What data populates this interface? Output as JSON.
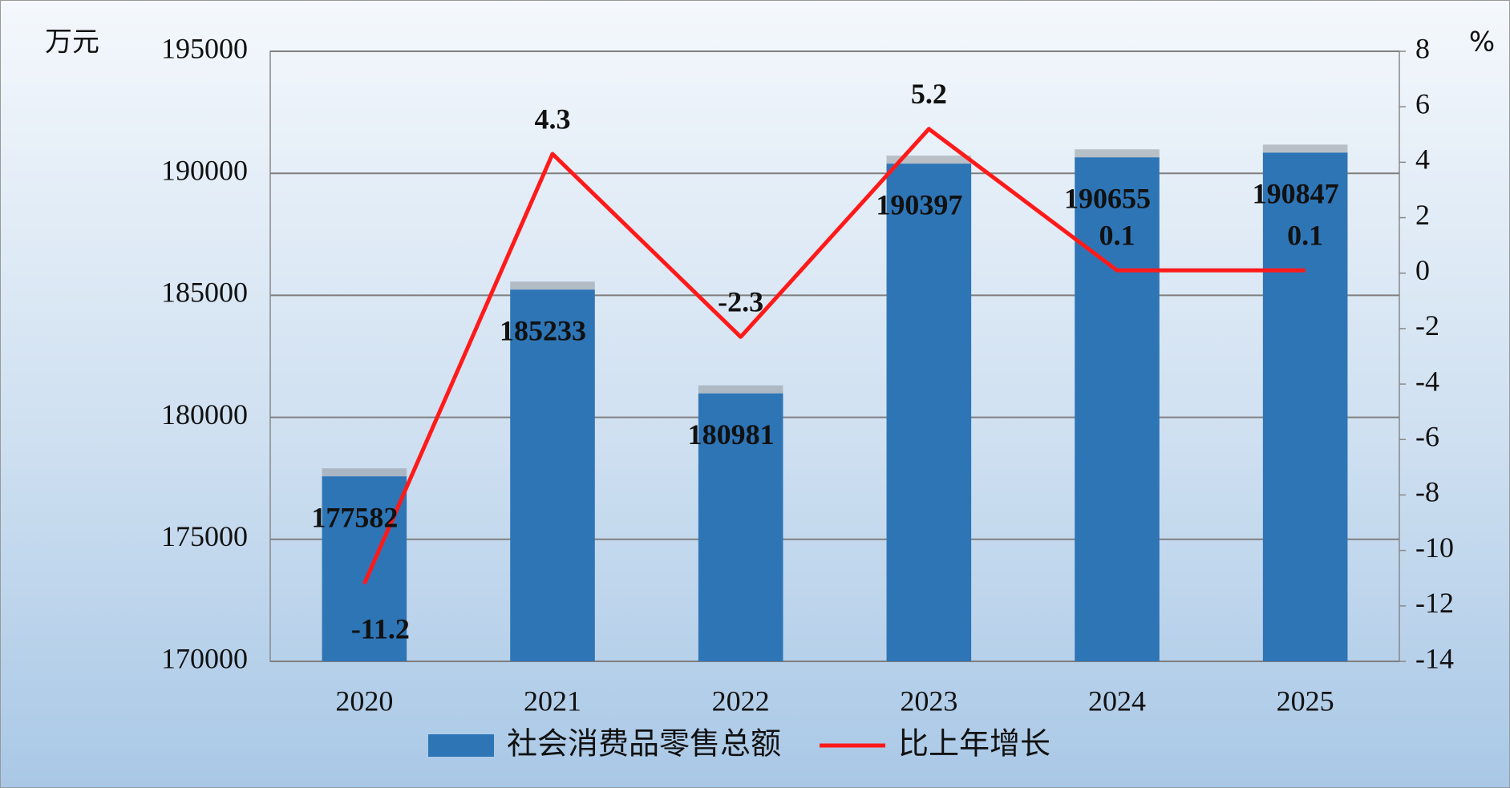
{
  "chart_data": {
    "type": "bar",
    "y_label": "万元",
    "y2_label": "%",
    "categories": [
      "2020",
      "2021",
      "2022",
      "2023",
      "2024",
      "2025"
    ],
    "series": [
      {
        "name": "社会消费品零售总额",
        "type": "bar",
        "color": "#2e75b6",
        "values": [
          177582,
          185233,
          180981,
          190397,
          190655,
          190847
        ]
      },
      {
        "name": "比上年增长",
        "type": "line",
        "axis": "y2",
        "color": "#ff1a1a",
        "values": [
          -11.2,
          4.3,
          -2.3,
          5.2,
          0.1,
          0.1
        ]
      }
    ],
    "ylim": [
      170000,
      195000
    ],
    "yticks": [
      170000,
      175000,
      180000,
      185000,
      190000,
      195000
    ],
    "y2lim": [
      -14,
      8
    ],
    "y2ticks": [
      -14,
      -12,
      -10,
      -8,
      -6,
      -4,
      -2,
      0,
      2,
      4,
      6,
      8
    ],
    "grid": true
  }
}
